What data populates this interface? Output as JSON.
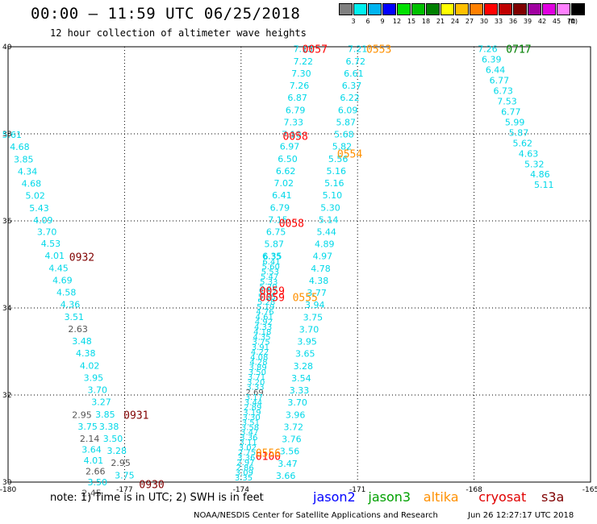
{
  "header": {
    "title": "00:00 – 11:59 UTC 06/25/2018",
    "subtitle": "12 hour collection of altimeter wave heights"
  },
  "legend": {
    "unit": "(ft)",
    "bins": [
      {
        "label": "3",
        "color": "#808080"
      },
      {
        "label": "6",
        "color": "#00f0f0"
      },
      {
        "label": "9",
        "color": "#00b4f0"
      },
      {
        "label": "12",
        "color": "#0000ff"
      },
      {
        "label": "15",
        "color": "#00e000"
      },
      {
        "label": "18",
        "color": "#00c000"
      },
      {
        "label": "21",
        "color": "#008000"
      },
      {
        "label": "24",
        "color": "#ffff00"
      },
      {
        "label": "27",
        "color": "#ffc000"
      },
      {
        "label": "30",
        "color": "#ff8000"
      },
      {
        "label": "33",
        "color": "#ff0000"
      },
      {
        "label": "36",
        "color": "#c00000"
      },
      {
        "label": "39",
        "color": "#800000"
      },
      {
        "label": "42",
        "color": "#a000a0"
      },
      {
        "label": "45",
        "color": "#e000e0"
      },
      {
        "label": "70",
        "color": "#ff80ff"
      },
      {
        "label": "",
        "color": "#000000"
      }
    ]
  },
  "map": {
    "lon_range": [
      -180,
      -165
    ],
    "lat_range": [
      30,
      40
    ],
    "lon_ticks": [
      "-180",
      "-177",
      "-174",
      "-171",
      "-168",
      "-165"
    ],
    "lat_ticks": [
      "30",
      "32",
      "34",
      "36",
      "38",
      "40"
    ]
  },
  "colors": {
    "cyan": "#00d8e8",
    "gray": "#555555",
    "red": "#ff0000",
    "darkred": "#800000",
    "orange": "#ff9000",
    "green": "#008000"
  },
  "tracks": [
    {
      "color": "cyan",
      "points": [
        {
          "lon": -179.9,
          "lat": 37.98,
          "v": "5.61"
        },
        {
          "lon": -179.7,
          "lat": 37.7,
          "v": "4.68"
        },
        {
          "lon": -179.6,
          "lat": 37.42,
          "v": "3.85"
        },
        {
          "lon": -179.5,
          "lat": 37.14,
          "v": "4.34"
        },
        {
          "lon": -179.4,
          "lat": 36.86,
          "v": "4.68"
        },
        {
          "lon": -179.3,
          "lat": 36.58,
          "v": "5.02"
        },
        {
          "lon": -179.2,
          "lat": 36.3,
          "v": "5.43"
        },
        {
          "lon": -179.1,
          "lat": 36.02,
          "v": "4.09"
        },
        {
          "lon": -179.0,
          "lat": 35.75,
          "v": "3.70"
        },
        {
          "lon": -178.9,
          "lat": 35.48,
          "v": "4.53"
        },
        {
          "lon": -178.8,
          "lat": 35.2,
          "v": "4.01"
        },
        {
          "lon": -178.7,
          "lat": 34.92,
          "v": "4.45"
        },
        {
          "lon": -178.6,
          "lat": 34.64,
          "v": "4.69"
        },
        {
          "lon": -178.5,
          "lat": 34.36,
          "v": "4.58"
        },
        {
          "lon": -178.4,
          "lat": 34.08,
          "v": "4.36"
        },
        {
          "lon": -178.3,
          "lat": 33.8,
          "v": "3.51"
        },
        {
          "lon": -178.2,
          "lat": 33.52,
          "v": "2.63",
          "c": "gray"
        },
        {
          "lon": -178.1,
          "lat": 33.24,
          "v": "3.48"
        },
        {
          "lon": -178.0,
          "lat": 32.96,
          "v": "4.38"
        },
        {
          "lon": -177.9,
          "lat": 32.68,
          "v": "4.02"
        },
        {
          "lon": -177.8,
          "lat": 32.4,
          "v": "3.95"
        },
        {
          "lon": -177.7,
          "lat": 32.12,
          "v": "3.70"
        },
        {
          "lon": -177.6,
          "lat": 31.84,
          "v": "3.27"
        },
        {
          "lon": -177.5,
          "lat": 31.56,
          "v": "3.85"
        },
        {
          "lon": -177.4,
          "lat": 31.28,
          "v": "3.38"
        },
        {
          "lon": -177.3,
          "lat": 31.0,
          "v": "3.50"
        },
        {
          "lon": -177.2,
          "lat": 30.72,
          "v": "3.28"
        },
        {
          "lon": -177.1,
          "lat": 30.44,
          "v": "2.95",
          "c": "gray"
        },
        {
          "lon": -177.0,
          "lat": 30.16,
          "v": "3.75"
        }
      ]
    },
    {
      "color": "cyan",
      "points": [
        {
          "lon": -172.4,
          "lat": 39.95,
          "v": "7.13"
        },
        {
          "lon": -172.4,
          "lat": 39.67,
          "v": "7.22"
        },
        {
          "lon": -172.45,
          "lat": 39.39,
          "v": "7.30"
        },
        {
          "lon": -172.5,
          "lat": 39.11,
          "v": "7.26"
        },
        {
          "lon": -172.55,
          "lat": 38.83,
          "v": "6.87"
        },
        {
          "lon": -172.6,
          "lat": 38.55,
          "v": "6.79"
        },
        {
          "lon": -172.65,
          "lat": 38.27,
          "v": "7.33"
        },
        {
          "lon": -172.7,
          "lat": 37.99,
          "v": "7.10"
        },
        {
          "lon": -172.75,
          "lat": 37.71,
          "v": "6.97"
        },
        {
          "lon": -172.8,
          "lat": 37.43,
          "v": "6.50"
        },
        {
          "lon": -172.85,
          "lat": 37.15,
          "v": "6.62"
        },
        {
          "lon": -172.9,
          "lat": 36.87,
          "v": "7.02"
        },
        {
          "lon": -172.95,
          "lat": 36.59,
          "v": "6.41"
        },
        {
          "lon": -173.0,
          "lat": 36.31,
          "v": "6.79"
        },
        {
          "lon": -173.05,
          "lat": 36.03,
          "v": "7.15"
        },
        {
          "lon": -173.1,
          "lat": 35.75,
          "v": "6.75"
        },
        {
          "lon": -173.15,
          "lat": 35.47,
          "v": "5.87"
        },
        {
          "lon": -173.2,
          "lat": 35.19,
          "v": "6.35"
        }
      ]
    },
    {
      "color": "cyan",
      "points": [
        {
          "lon": -171.0,
          "lat": 39.95,
          "v": "7.21"
        },
        {
          "lon": -171.05,
          "lat": 39.67,
          "v": "6.72"
        },
        {
          "lon": -171.1,
          "lat": 39.39,
          "v": "6.61"
        },
        {
          "lon": -171.15,
          "lat": 39.11,
          "v": "6.37"
        },
        {
          "lon": -171.2,
          "lat": 38.83,
          "v": "6.22"
        },
        {
          "lon": -171.25,
          "lat": 38.55,
          "v": "6.09"
        },
        {
          "lon": -171.3,
          "lat": 38.27,
          "v": "5.87"
        },
        {
          "lon": -171.35,
          "lat": 37.99,
          "v": "5.68"
        },
        {
          "lon": -171.4,
          "lat": 37.71,
          "v": "5.82"
        },
        {
          "lon": -171.5,
          "lat": 37.43,
          "v": "5.56"
        },
        {
          "lon": -171.55,
          "lat": 37.15,
          "v": "5.16"
        },
        {
          "lon": -171.6,
          "lat": 36.87,
          "v": "5.16"
        },
        {
          "lon": -171.65,
          "lat": 36.59,
          "v": "5.10"
        },
        {
          "lon": -171.7,
          "lat": 36.31,
          "v": "5.30"
        },
        {
          "lon": -171.75,
          "lat": 36.03,
          "v": "5.14"
        },
        {
          "lon": -171.8,
          "lat": 35.75,
          "v": "5.44"
        },
        {
          "lon": -171.85,
          "lat": 35.47,
          "v": "4.89"
        },
        {
          "lon": -171.9,
          "lat": 35.19,
          "v": "4.97"
        },
        {
          "lon": -171.95,
          "lat": 34.91,
          "v": "4.78"
        },
        {
          "lon": -172.0,
          "lat": 34.63,
          "v": "4.38"
        },
        {
          "lon": -172.05,
          "lat": 34.35,
          "v": "3.77"
        },
        {
          "lon": -172.1,
          "lat": 34.07,
          "v": "3.94"
        },
        {
          "lon": -172.15,
          "lat": 33.79,
          "v": "3.75"
        },
        {
          "lon": -172.25,
          "lat": 33.51,
          "v": "3.70"
        },
        {
          "lon": -172.3,
          "lat": 33.23,
          "v": "3.95"
        },
        {
          "lon": -172.35,
          "lat": 32.95,
          "v": "3.65"
        },
        {
          "lon": -172.4,
          "lat": 32.67,
          "v": "3.28"
        },
        {
          "lon": -172.45,
          "lat": 32.39,
          "v": "3.54"
        },
        {
          "lon": -172.5,
          "lat": 32.11,
          "v": "3.33"
        },
        {
          "lon": -172.55,
          "lat": 31.83,
          "v": "3.70"
        },
        {
          "lon": -172.6,
          "lat": 31.55,
          "v": "3.96"
        },
        {
          "lon": -172.65,
          "lat": 31.27,
          "v": "3.72"
        },
        {
          "lon": -172.7,
          "lat": 30.99,
          "v": "3.76"
        },
        {
          "lon": -172.75,
          "lat": 30.71,
          "v": "3.56"
        },
        {
          "lon": -172.8,
          "lat": 30.43,
          "v": "3.47"
        },
        {
          "lon": -172.85,
          "lat": 30.15,
          "v": "3.66"
        }
      ]
    },
    {
      "color": "cyan",
      "points": [
        {
          "lon": -167.65,
          "lat": 39.95,
          "v": "7.26"
        },
        {
          "lon": -167.55,
          "lat": 39.71,
          "v": "6.39"
        },
        {
          "lon": -167.45,
          "lat": 39.47,
          "v": "6.44"
        },
        {
          "lon": -167.35,
          "lat": 39.23,
          "v": "6.77"
        },
        {
          "lon": -167.25,
          "lat": 38.99,
          "v": "6.73"
        },
        {
          "lon": -167.15,
          "lat": 38.75,
          "v": "7.53"
        },
        {
          "lon": -167.05,
          "lat": 38.51,
          "v": "6.77"
        },
        {
          "lon": -166.95,
          "lat": 38.27,
          "v": "5.99"
        },
        {
          "lon": -166.85,
          "lat": 38.03,
          "v": "5.87"
        },
        {
          "lon": -166.75,
          "lat": 37.79,
          "v": "5.62"
        },
        {
          "lon": -166.6,
          "lat": 37.55,
          "v": "4.63"
        },
        {
          "lon": -166.45,
          "lat": 37.31,
          "v": "5.32"
        },
        {
          "lon": -166.3,
          "lat": 37.07,
          "v": "4.86"
        },
        {
          "lon": -166.2,
          "lat": 36.83,
          "v": "5.11"
        }
      ]
    }
  ],
  "dense_track": [
    "6.35",
    "6.41",
    "5.60",
    "5.53",
    "5.47",
    "5.33",
    "5.20",
    "5.62",
    "5.35",
    "5.28",
    "5.19",
    "4.76",
    "4.61",
    "4.92",
    "4.33",
    "4.18",
    "4.35",
    "3.75",
    "3.91",
    "4.22",
    "4.08",
    "4.28",
    "3.89",
    "3.50",
    "3.71",
    "3.20",
    "3.33",
    "2.69",
    "3.17",
    "3.44",
    "2.89",
    "3.19",
    "3.30",
    "3.51",
    "3.58",
    "3.47",
    "3.36",
    "3.11",
    "3.02",
    "2.75",
    "3.36",
    "2.97",
    "2.86",
    "3.09",
    "3.35"
  ],
  "time_labels": [
    {
      "lon": -172.1,
      "lat": 39.95,
      "t": "0057",
      "c": "red"
    },
    {
      "lon": -170.45,
      "lat": 39.95,
      "t": "0553",
      "c": "orange"
    },
    {
      "lon": -166.85,
      "lat": 39.95,
      "t": "0717",
      "c": "green"
    },
    {
      "lon": -172.6,
      "lat": 37.95,
      "t": "0058",
      "c": "red"
    },
    {
      "lon": -171.2,
      "lat": 37.55,
      "t": "0554",
      "c": "orange"
    },
    {
      "lon": -172.7,
      "lat": 35.95,
      "t": "0058",
      "c": "red"
    },
    {
      "lon": -178.1,
      "lat": 35.18,
      "t": "0932",
      "c": "darkred"
    },
    {
      "lon": -173.2,
      "lat": 34.4,
      "t": "0059",
      "c": "red"
    },
    {
      "lon": -173.2,
      "lat": 34.25,
      "t": "0059",
      "c": "red"
    },
    {
      "lon": -172.35,
      "lat": 34.25,
      "t": "0555",
      "c": "orange"
    },
    {
      "lon": -176.7,
      "lat": 31.55,
      "t": "0931",
      "c": "darkred"
    },
    {
      "lon": -173.3,
      "lat": 30.6,
      "t": "0100",
      "c": "red"
    },
    {
      "lon": -173.3,
      "lat": 30.68,
      "t": "0556",
      "c": "orange"
    },
    {
      "lon": -176.3,
      "lat": 29.95,
      "t": "0930",
      "c": "darkred"
    }
  ],
  "extra_labels": [
    {
      "lon": -178.1,
      "lat": 31.55,
      "v": "2.95",
      "c": "gray"
    },
    {
      "lon": -177.95,
      "lat": 31.28,
      "v": "3.75",
      "c": "cyan"
    },
    {
      "lon": -177.9,
      "lat": 31.0,
      "v": "2.14",
      "c": "gray"
    },
    {
      "lon": -177.85,
      "lat": 30.75,
      "v": "3.64",
      "c": "cyan"
    },
    {
      "lon": -177.8,
      "lat": 30.5,
      "v": "4.01",
      "c": "cyan"
    },
    {
      "lon": -177.75,
      "lat": 30.25,
      "v": "2.66",
      "c": "gray"
    },
    {
      "lon": -177.7,
      "lat": 30.0,
      "v": "3.50",
      "c": "cyan"
    },
    {
      "lon": -177.85,
      "lat": 29.75,
      "v": "2.45",
      "c": "gray"
    }
  ],
  "note": "note: 1) Time is in UTC; 2) SWH is in feet",
  "satellites": [
    {
      "name": "jason2",
      "c": "#0000ff"
    },
    {
      "name": "jason3",
      "c": "#00a000"
    },
    {
      "name": "altika",
      "c": "#ff9000"
    },
    {
      "name": "cryosat",
      "c": "#e00000"
    },
    {
      "name": "s3a",
      "c": "#800000"
    }
  ],
  "footer": "NOAA/NESDIS Center for Satellite Applications and Research",
  "footer_time": "Jun 26 12:27:17 UTC 2018"
}
